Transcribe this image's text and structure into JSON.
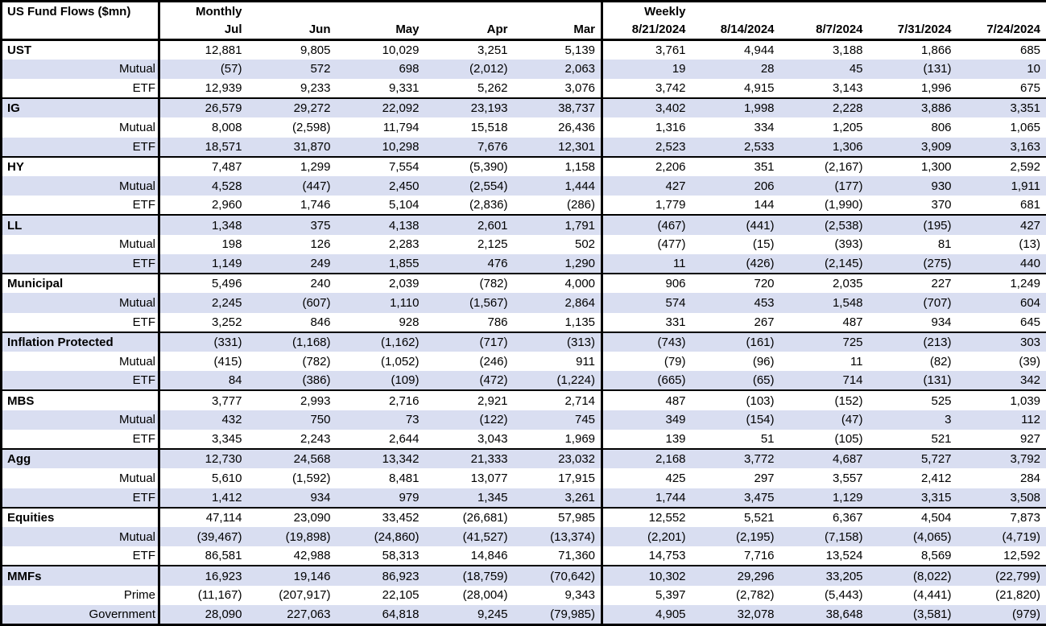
{
  "title": "US Fund Flows ($mn)",
  "colors": {
    "stripe": "#D9DEF1",
    "border": "#000000",
    "text": "#000000",
    "background": "#FFFFFF"
  },
  "chart_data": {
    "type": "table",
    "title": "US Fund Flows ($mn)",
    "column_groups": {
      "monthly": "Monthly",
      "weekly": "Weekly"
    },
    "monthly_columns": [
      "Jul",
      "Jun",
      "May",
      "Apr",
      "Mar"
    ],
    "weekly_columns": [
      "8/21/2024",
      "8/14/2024",
      "8/7/2024",
      "7/31/2024",
      "7/24/2024"
    ],
    "sections": [
      {
        "rows": [
          {
            "label": "UST",
            "monthly": [
              "12,881",
              "9,805",
              "10,029",
              "3,251",
              "5,139"
            ],
            "weekly": [
              "3,761",
              "4,944",
              "3,188",
              "1,866",
              "685"
            ]
          },
          {
            "label": "Mutual",
            "monthly": [
              "(57)",
              "572",
              "698",
              "(2,012)",
              "2,063"
            ],
            "weekly": [
              "19",
              "28",
              "45",
              "(131)",
              "10"
            ]
          },
          {
            "label": "ETF",
            "monthly": [
              "12,939",
              "9,233",
              "9,331",
              "5,262",
              "3,076"
            ],
            "weekly": [
              "3,742",
              "4,915",
              "3,143",
              "1,996",
              "675"
            ]
          }
        ]
      },
      {
        "rows": [
          {
            "label": "IG",
            "monthly": [
              "26,579",
              "29,272",
              "22,092",
              "23,193",
              "38,737"
            ],
            "weekly": [
              "3,402",
              "1,998",
              "2,228",
              "3,886",
              "3,351"
            ]
          },
          {
            "label": "Mutual",
            "monthly": [
              "8,008",
              "(2,598)",
              "11,794",
              "15,518",
              "26,436"
            ],
            "weekly": [
              "1,316",
              "334",
              "1,205",
              "806",
              "1,065"
            ]
          },
          {
            "label": "ETF",
            "monthly": [
              "18,571",
              "31,870",
              "10,298",
              "7,676",
              "12,301"
            ],
            "weekly": [
              "2,523",
              "2,533",
              "1,306",
              "3,909",
              "3,163"
            ]
          }
        ]
      },
      {
        "rows": [
          {
            "label": "HY",
            "monthly": [
              "7,487",
              "1,299",
              "7,554",
              "(5,390)",
              "1,158"
            ],
            "weekly": [
              "2,206",
              "351",
              "(2,167)",
              "1,300",
              "2,592"
            ]
          },
          {
            "label": "Mutual",
            "monthly": [
              "4,528",
              "(447)",
              "2,450",
              "(2,554)",
              "1,444"
            ],
            "weekly": [
              "427",
              "206",
              "(177)",
              "930",
              "1,911"
            ]
          },
          {
            "label": "ETF",
            "monthly": [
              "2,960",
              "1,746",
              "5,104",
              "(2,836)",
              "(286)"
            ],
            "weekly": [
              "1,779",
              "144",
              "(1,990)",
              "370",
              "681"
            ]
          }
        ]
      },
      {
        "rows": [
          {
            "label": "LL",
            "monthly": [
              "1,348",
              "375",
              "4,138",
              "2,601",
              "1,791"
            ],
            "weekly": [
              "(467)",
              "(441)",
              "(2,538)",
              "(195)",
              "427"
            ]
          },
          {
            "label": "Mutual",
            "monthly": [
              "198",
              "126",
              "2,283",
              "2,125",
              "502"
            ],
            "weekly": [
              "(477)",
              "(15)",
              "(393)",
              "81",
              "(13)"
            ]
          },
          {
            "label": "ETF",
            "monthly": [
              "1,149",
              "249",
              "1,855",
              "476",
              "1,290"
            ],
            "weekly": [
              "11",
              "(426)",
              "(2,145)",
              "(275)",
              "440"
            ]
          }
        ]
      },
      {
        "rows": [
          {
            "label": "Municipal",
            "monthly": [
              "5,496",
              "240",
              "2,039",
              "(782)",
              "4,000"
            ],
            "weekly": [
              "906",
              "720",
              "2,035",
              "227",
              "1,249"
            ]
          },
          {
            "label": "Mutual",
            "monthly": [
              "2,245",
              "(607)",
              "1,110",
              "(1,567)",
              "2,864"
            ],
            "weekly": [
              "574",
              "453",
              "1,548",
              "(707)",
              "604"
            ]
          },
          {
            "label": "ETF",
            "monthly": [
              "3,252",
              "846",
              "928",
              "786",
              "1,135"
            ],
            "weekly": [
              "331",
              "267",
              "487",
              "934",
              "645"
            ]
          }
        ]
      },
      {
        "rows": [
          {
            "label": "Inflation Protected",
            "monthly": [
              "(331)",
              "(1,168)",
              "(1,162)",
              "(717)",
              "(313)"
            ],
            "weekly": [
              "(743)",
              "(161)",
              "725",
              "(213)",
              "303"
            ]
          },
          {
            "label": "Mutual",
            "monthly": [
              "(415)",
              "(782)",
              "(1,052)",
              "(246)",
              "911"
            ],
            "weekly": [
              "(79)",
              "(96)",
              "11",
              "(82)",
              "(39)"
            ]
          },
          {
            "label": "ETF",
            "monthly": [
              "84",
              "(386)",
              "(109)",
              "(472)",
              "(1,224)"
            ],
            "weekly": [
              "(665)",
              "(65)",
              "714",
              "(131)",
              "342"
            ]
          }
        ]
      },
      {
        "rows": [
          {
            "label": "MBS",
            "monthly": [
              "3,777",
              "2,993",
              "2,716",
              "2,921",
              "2,714"
            ],
            "weekly": [
              "487",
              "(103)",
              "(152)",
              "525",
              "1,039"
            ]
          },
          {
            "label": "Mutual",
            "monthly": [
              "432",
              "750",
              "73",
              "(122)",
              "745"
            ],
            "weekly": [
              "349",
              "(154)",
              "(47)",
              "3",
              "112"
            ]
          },
          {
            "label": "ETF",
            "monthly": [
              "3,345",
              "2,243",
              "2,644",
              "3,043",
              "1,969"
            ],
            "weekly": [
              "139",
              "51",
              "(105)",
              "521",
              "927"
            ]
          }
        ]
      },
      {
        "rows": [
          {
            "label": "Agg",
            "monthly": [
              "12,730",
              "24,568",
              "13,342",
              "21,333",
              "23,032"
            ],
            "weekly": [
              "2,168",
              "3,772",
              "4,687",
              "5,727",
              "3,792"
            ]
          },
          {
            "label": "Mutual",
            "monthly": [
              "5,610",
              "(1,592)",
              "8,481",
              "13,077",
              "17,915"
            ],
            "weekly": [
              "425",
              "297",
              "3,557",
              "2,412",
              "284"
            ]
          },
          {
            "label": "ETF",
            "monthly": [
              "1,412",
              "934",
              "979",
              "1,345",
              "3,261"
            ],
            "weekly": [
              "1,744",
              "3,475",
              "1,129",
              "3,315",
              "3,508"
            ]
          }
        ]
      },
      {
        "rows": [
          {
            "label": "Equities",
            "monthly": [
              "47,114",
              "23,090",
              "33,452",
              "(26,681)",
              "57,985"
            ],
            "weekly": [
              "12,552",
              "5,521",
              "6,367",
              "4,504",
              "7,873"
            ]
          },
          {
            "label": "Mutual",
            "monthly": [
              "(39,467)",
              "(19,898)",
              "(24,860)",
              "(41,527)",
              "(13,374)"
            ],
            "weekly": [
              "(2,201)",
              "(2,195)",
              "(7,158)",
              "(4,065)",
              "(4,719)"
            ]
          },
          {
            "label": "ETF",
            "monthly": [
              "86,581",
              "42,988",
              "58,313",
              "14,846",
              "71,360"
            ],
            "weekly": [
              "14,753",
              "7,716",
              "13,524",
              "8,569",
              "12,592"
            ]
          }
        ]
      },
      {
        "rows": [
          {
            "label": "MMFs",
            "monthly": [
              "16,923",
              "19,146",
              "86,923",
              "(18,759)",
              "(70,642)"
            ],
            "weekly": [
              "10,302",
              "29,296",
              "33,205",
              "(8,022)",
              "(22,799)"
            ]
          },
          {
            "label": "Prime",
            "monthly": [
              "(11,167)",
              "(207,917)",
              "22,105",
              "(28,004)",
              "9,343"
            ],
            "weekly": [
              "5,397",
              "(2,782)",
              "(5,443)",
              "(4,441)",
              "(21,820)"
            ]
          },
          {
            "label": "Government",
            "monthly": [
              "28,090",
              "227,063",
              "64,818",
              "9,245",
              "(79,985)"
            ],
            "weekly": [
              "4,905",
              "32,078",
              "38,648",
              "(3,581)",
              "(979)"
            ]
          }
        ]
      }
    ]
  }
}
